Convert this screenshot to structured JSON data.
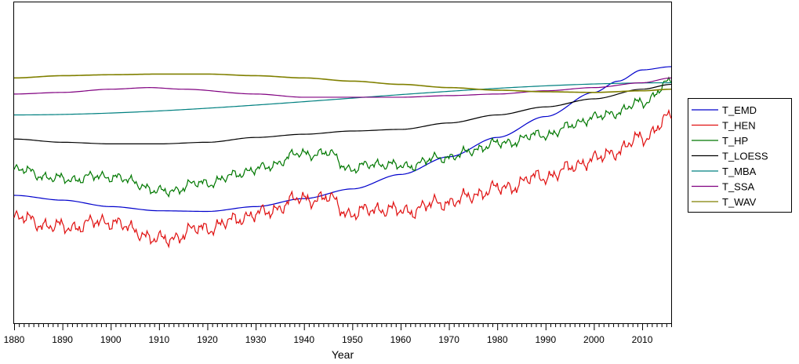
{
  "chart_data": {
    "type": "line",
    "title": "",
    "xlabel": "Year",
    "ylabel": "",
    "xlim": [
      1880,
      2016
    ],
    "x_ticks": [
      1880,
      1890,
      1900,
      1910,
      1920,
      1930,
      1940,
      1950,
      1960,
      1970,
      1980,
      1990,
      2000,
      2010
    ],
    "y_axis": "none",
    "grid": false,
    "legend_position": "right",
    "series": [
      {
        "name": "T_EMD",
        "color": "#0000cc",
        "points": [
          [
            1880,
            60.0
          ],
          [
            1890,
            61.5
          ],
          [
            1900,
            63.5
          ],
          [
            1910,
            64.8
          ],
          [
            1920,
            65.0
          ],
          [
            1930,
            63.5
          ],
          [
            1940,
            61.0
          ],
          [
            1950,
            58.0
          ],
          [
            1960,
            53.5
          ],
          [
            1970,
            48.0
          ],
          [
            1980,
            42.0
          ],
          [
            1990,
            35.5
          ],
          [
            2000,
            28.0
          ],
          [
            2005,
            24.5
          ],
          [
            2010,
            21.0
          ],
          [
            2016,
            20.0
          ]
        ]
      },
      {
        "name": "T_HEN",
        "color": "#e01010",
        "noise": 1.0,
        "points": [
          [
            1880,
            67
          ],
          [
            1890,
            70
          ],
          [
            1900,
            68
          ],
          [
            1905,
            71
          ],
          [
            1910,
            74
          ],
          [
            1920,
            70
          ],
          [
            1930,
            66
          ],
          [
            1940,
            61
          ],
          [
            1945,
            61
          ],
          [
            1950,
            66
          ],
          [
            1955,
            64
          ],
          [
            1960,
            65
          ],
          [
            1970,
            62
          ],
          [
            1980,
            58
          ],
          [
            1990,
            54
          ],
          [
            2000,
            49
          ],
          [
            2005,
            46
          ],
          [
            2010,
            42
          ],
          [
            2016,
            36
          ]
        ]
      },
      {
        "name": "T_HP",
        "color": "#007800",
        "noise": 0.7,
        "points": [
          [
            1880,
            52
          ],
          [
            1890,
            55
          ],
          [
            1900,
            54
          ],
          [
            1905,
            56
          ],
          [
            1910,
            59
          ],
          [
            1920,
            56
          ],
          [
            1930,
            52
          ],
          [
            1940,
            47
          ],
          [
            1945,
            47
          ],
          [
            1950,
            52
          ],
          [
            1955,
            50
          ],
          [
            1960,
            51
          ],
          [
            1970,
            48
          ],
          [
            1980,
            44
          ],
          [
            1990,
            41
          ],
          [
            2000,
            36
          ],
          [
            2005,
            34
          ],
          [
            2010,
            31
          ],
          [
            2016,
            25
          ]
        ]
      },
      {
        "name": "T_LOESS",
        "color": "#000000",
        "points": [
          [
            1880,
            42.5
          ],
          [
            1890,
            43.5
          ],
          [
            1900,
            44.0
          ],
          [
            1910,
            44.0
          ],
          [
            1920,
            43.5
          ],
          [
            1930,
            42.0
          ],
          [
            1940,
            41.0
          ],
          [
            1950,
            40.0
          ],
          [
            1960,
            39.5
          ],
          [
            1970,
            37.5
          ],
          [
            1980,
            35.0
          ],
          [
            1990,
            32.5
          ],
          [
            2000,
            30.0
          ],
          [
            2010,
            27.0
          ],
          [
            2016,
            25.5
          ]
        ]
      },
      {
        "name": "T_MBA",
        "color": "#008080",
        "points": [
          [
            1880,
            35.0
          ],
          [
            2016,
            25.0
          ]
        ]
      },
      {
        "name": "T_SSA",
        "color": "#800080",
        "points": [
          [
            1880,
            28.5
          ],
          [
            1890,
            28.0
          ],
          [
            1900,
            27.0
          ],
          [
            1908,
            26.5
          ],
          [
            1915,
            27.0
          ],
          [
            1930,
            28.5
          ],
          [
            1940,
            29.5
          ],
          [
            1950,
            29.5
          ],
          [
            1960,
            29.5
          ],
          [
            1970,
            29.0
          ],
          [
            1980,
            28.5
          ],
          [
            1990,
            27.5
          ],
          [
            2000,
            26.5
          ],
          [
            2010,
            25.0
          ],
          [
            2016,
            23.5
          ]
        ]
      },
      {
        "name": "T_WAV",
        "color": "#808000",
        "points": [
          [
            1880,
            23.5
          ],
          [
            1890,
            22.8
          ],
          [
            1900,
            22.5
          ],
          [
            1910,
            22.3
          ],
          [
            1920,
            22.3
          ],
          [
            1930,
            22.8
          ],
          [
            1940,
            23.5
          ],
          [
            1950,
            24.5
          ],
          [
            1960,
            25.5
          ],
          [
            1970,
            26.5
          ],
          [
            1980,
            27.3
          ],
          [
            1990,
            27.8
          ],
          [
            2000,
            28.0
          ],
          [
            2010,
            27.5
          ],
          [
            2016,
            27.0
          ]
        ]
      }
    ]
  }
}
